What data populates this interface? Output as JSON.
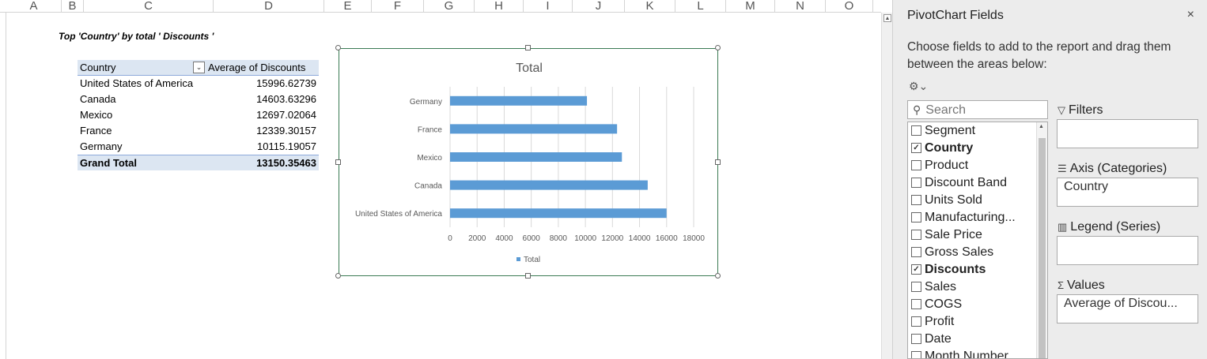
{
  "sheet": {
    "columns": [
      "A",
      "B",
      "C",
      "D",
      "E",
      "F",
      "G",
      "H",
      "I",
      "J",
      "K",
      "L",
      "M",
      "N",
      "O"
    ]
  },
  "pivot": {
    "title": "Top 'Country' by total ' Discounts '",
    "header": {
      "col1": "Country",
      "col2": "Average of Discounts"
    },
    "rows": [
      {
        "country": "United States of America",
        "value": "15996.62739"
      },
      {
        "country": "Canada",
        "value": "14603.63296"
      },
      {
        "country": "Mexico",
        "value": "12697.02064"
      },
      {
        "country": "France",
        "value": "12339.30157"
      },
      {
        "country": "Germany",
        "value": "10115.19057"
      }
    ],
    "total": {
      "label": "Grand Total",
      "value": "13150.35463"
    }
  },
  "chart_data": {
    "type": "bar",
    "orientation": "horizontal",
    "title": "Total",
    "categories": [
      "Germany",
      "France",
      "Mexico",
      "Canada",
      "United States of America"
    ],
    "series": [
      {
        "name": "Total",
        "values": [
          10115.19057,
          12339.30157,
          12697.02064,
          14603.63296,
          15996.62739
        ],
        "color": "#5b9bd5"
      }
    ],
    "xlim": [
      0,
      18000
    ],
    "xticks": [
      "0",
      "2000",
      "4000",
      "6000",
      "8000",
      "10000",
      "12000",
      "14000",
      "16000",
      "18000"
    ],
    "grid": true,
    "legend": "bottom"
  },
  "pane": {
    "title": "PivotChart Fields",
    "close": "×",
    "description": "Choose fields to add to the report and drag them between the areas below:",
    "search_placeholder": "Search",
    "fields": [
      {
        "label": "Segment",
        "checked": false
      },
      {
        "label": "Country",
        "checked": true
      },
      {
        "label": "Product",
        "checked": false
      },
      {
        "label": "Discount Band",
        "checked": false
      },
      {
        "label": "Units Sold",
        "checked": false
      },
      {
        "label": "Manufacturing...",
        "checked": false
      },
      {
        "label": "Sale Price",
        "checked": false
      },
      {
        "label": "Gross Sales",
        "checked": false
      },
      {
        "label": "Discounts",
        "checked": true
      },
      {
        "label": "Sales",
        "checked": false
      },
      {
        "label": "COGS",
        "checked": false
      },
      {
        "label": "Profit",
        "checked": false
      },
      {
        "label": "Date",
        "checked": false
      },
      {
        "label": "Month Number",
        "checked": false
      }
    ],
    "areas": {
      "filters": {
        "label": "Filters",
        "value": ""
      },
      "axis": {
        "label": "Axis (Categories)",
        "value": "Country"
      },
      "legend": {
        "label": "Legend (Series)",
        "value": ""
      },
      "values": {
        "label": "Values",
        "value": "Average of Discou..."
      }
    }
  }
}
